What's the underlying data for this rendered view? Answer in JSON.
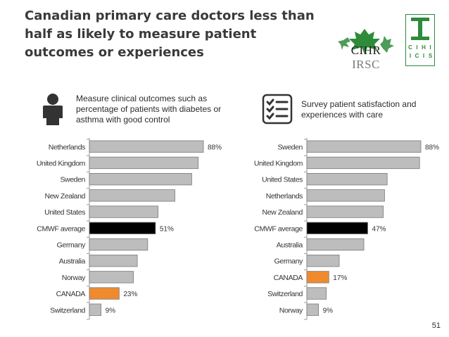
{
  "title": "Canadian primary care doctors less than half as likely to measure patient outcomes or experiences",
  "logos": {
    "cihr_left": "CIHR",
    "cihr_right": "IRSC",
    "cihi_letters": [
      "C",
      "I",
      "H",
      "I",
      "I",
      "C",
      "I",
      "S"
    ]
  },
  "panels": [
    {
      "icon": "person-icon",
      "text": "Measure clinical outcomes such as percentage of patients with diabetes or asthma with good control"
    },
    {
      "icon": "checklist-icon",
      "text": "Survey patient satisfaction and experiences with care"
    }
  ],
  "colors": {
    "bar": "#bdbdbd",
    "average": "#000000",
    "canada": "#f08a2e",
    "stroke": "#7a7a7a"
  },
  "chart_data": [
    {
      "type": "bar",
      "orientation": "horizontal",
      "categories": [
        "Netherlands",
        "United Kingdom",
        "Sweden",
        "New Zealand",
        "United States",
        "CMWF average",
        "Germany",
        "Australia",
        "Norway",
        "CANADA",
        "Switzerland"
      ],
      "values": [
        88,
        84,
        79,
        66,
        53,
        51,
        45,
        37,
        34,
        23,
        9
      ],
      "data_labels": [
        "88%",
        "",
        "",
        "",
        "",
        "51%",
        "",
        "",
        "",
        "23%",
        "9%"
      ],
      "highlights": {
        "CMWF average": "average",
        "CANADA": "canada"
      },
      "xlim": [
        0,
        100
      ]
    },
    {
      "type": "bar",
      "orientation": "horizontal",
      "categories": [
        "Sweden",
        "United Kingdom",
        "United States",
        "Netherlands",
        "New Zealand",
        "CMWF average",
        "Australia",
        "Germany",
        "CANADA",
        "Switzerland",
        "Norway"
      ],
      "values": [
        88,
        87,
        62,
        60,
        59,
        47,
        44,
        25,
        17,
        15,
        9
      ],
      "data_labels": [
        "88%",
        "",
        "",
        "",
        "",
        "47%",
        "",
        "",
        "17%",
        "",
        "9%"
      ],
      "highlights": {
        "CMWF average": "average",
        "CANADA": "canada"
      },
      "xlim": [
        0,
        100
      ]
    }
  ],
  "page_number": "51"
}
